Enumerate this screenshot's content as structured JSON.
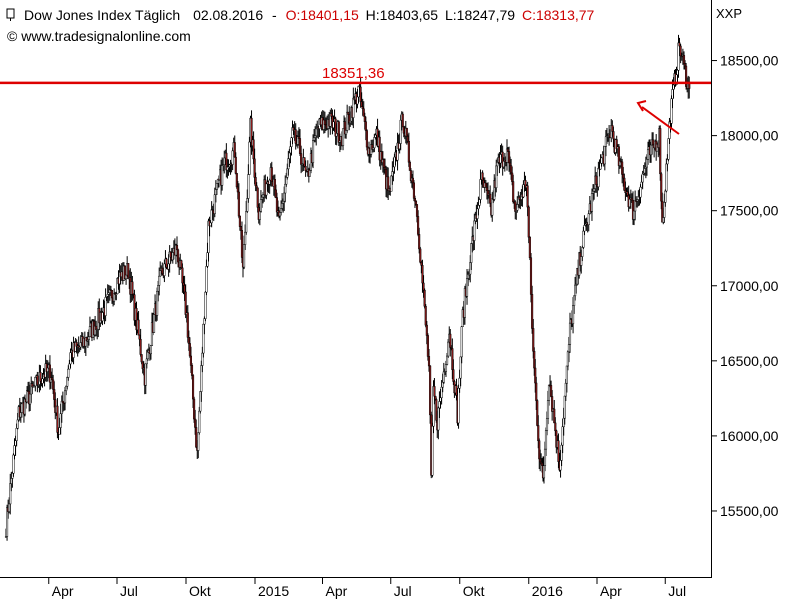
{
  "header": {
    "instrument": "Dow Jones Index Täglich",
    "date": "02.08.2016",
    "sep": "-",
    "ohlc": [
      {
        "prefix": "O:",
        "value": "18401,15",
        "color": "#cc0000"
      },
      {
        "prefix": "H:",
        "value": "18403,65",
        "color": "#000000"
      },
      {
        "prefix": "L:",
        "value": "18247,79",
        "color": "#000000"
      },
      {
        "prefix": "C:",
        "value": "18313,77",
        "color": "#cc0000"
      }
    ],
    "source": "© www.tradesignalonline.com",
    "symbol": "XXP"
  },
  "chart_data": {
    "type": "line",
    "title": "Dow Jones Index Täglich",
    "ylim": [
      15300,
      18850
    ],
    "y_ticks": [
      15500,
      16000,
      16500,
      17000,
      17500,
      18000,
      18500
    ],
    "y_tick_labels": [
      "15500,00",
      "16000,00",
      "16500,00",
      "17000,00",
      "17500,00",
      "18000,00",
      "18500,00"
    ],
    "x_start": "2014-01-26",
    "x_end": "2016-08-31",
    "x_ticks": [
      {
        "label": "Apr",
        "date": "2014-04-01"
      },
      {
        "label": "Jul",
        "date": "2014-07-01"
      },
      {
        "label": "Okt",
        "date": "2014-10-01"
      },
      {
        "label": "2015",
        "date": "2015-01-01"
      },
      {
        "label": "Apr",
        "date": "2015-04-01"
      },
      {
        "label": "Jul",
        "date": "2015-07-01"
      },
      {
        "label": "Okt",
        "date": "2015-10-01"
      },
      {
        "label": "2016",
        "date": "2016-01-01"
      },
      {
        "label": "Apr",
        "date": "2016-04-01"
      },
      {
        "label": "Jul",
        "date": "2016-07-01"
      }
    ],
    "series": [
      {
        "x": [
          "2014-02-03",
          "2014-02-20",
          "2014-03-10",
          "2014-03-25",
          "2014-04-04",
          "2014-04-14",
          "2014-04-30",
          "2014-05-15",
          "2014-05-30",
          "2014-06-20",
          "2014-07-03",
          "2014-07-16",
          "2014-08-07",
          "2014-08-29",
          "2014-09-19",
          "2014-10-02",
          "2014-10-16",
          "2014-10-31",
          "2014-11-21",
          "2014-12-05",
          "2014-12-16",
          "2014-12-26",
          "2015-01-06",
          "2015-01-22",
          "2015-02-02",
          "2015-02-20",
          "2015-03-02",
          "2015-03-11",
          "2015-03-25",
          "2015-04-10",
          "2015-04-27",
          "2015-05-19",
          "2015-06-02",
          "2015-06-12",
          "2015-06-29",
          "2015-07-17",
          "2015-08-05",
          "2015-08-21",
          "2015-08-24",
          "2015-08-27",
          "2015-09-01",
          "2015-09-17",
          "2015-09-28",
          "2015-10-05",
          "2015-10-15",
          "2015-10-30",
          "2015-11-12",
          "2015-11-20",
          "2015-12-03",
          "2015-12-14",
          "2015-12-29",
          "2016-01-07",
          "2016-01-15",
          "2016-01-20",
          "2016-01-28",
          "2016-02-11",
          "2016-02-25",
          "2016-03-11",
          "2016-03-31",
          "2016-04-20",
          "2016-05-06",
          "2016-05-19",
          "2016-06-08",
          "2016-06-23",
          "2016-06-27",
          "2016-07-08",
          "2016-07-20",
          "2016-07-26",
          "2016-08-02"
        ],
        "y": [
          15400,
          16150,
          16300,
          16420,
          16420,
          16030,
          16550,
          16600,
          16720,
          16900,
          17050,
          17100,
          16400,
          17080,
          17250,
          16800,
          15880,
          17400,
          17820,
          17900,
          17100,
          18050,
          17500,
          17800,
          17400,
          18000,
          17900,
          17700,
          18050,
          18100,
          18000,
          18300,
          17900,
          18000,
          17600,
          18120,
          17500,
          16450,
          15700,
          16300,
          16100,
          16700,
          16150,
          16800,
          17200,
          17700,
          17500,
          17800,
          17900,
          17500,
          17700,
          16550,
          15900,
          15700,
          16400,
          15800,
          16700,
          17250,
          17700,
          18050,
          17700,
          17500,
          17850,
          18000,
          17400,
          18150,
          18600,
          18450,
          18313.77
        ]
      }
    ],
    "annotations": [
      {
        "type": "hline",
        "y": 18351.36,
        "label": "18351,36",
        "color": "#dd0000"
      },
      {
        "type": "arrow",
        "color": "#dd0000"
      }
    ],
    "grid": false,
    "legend": "none"
  }
}
